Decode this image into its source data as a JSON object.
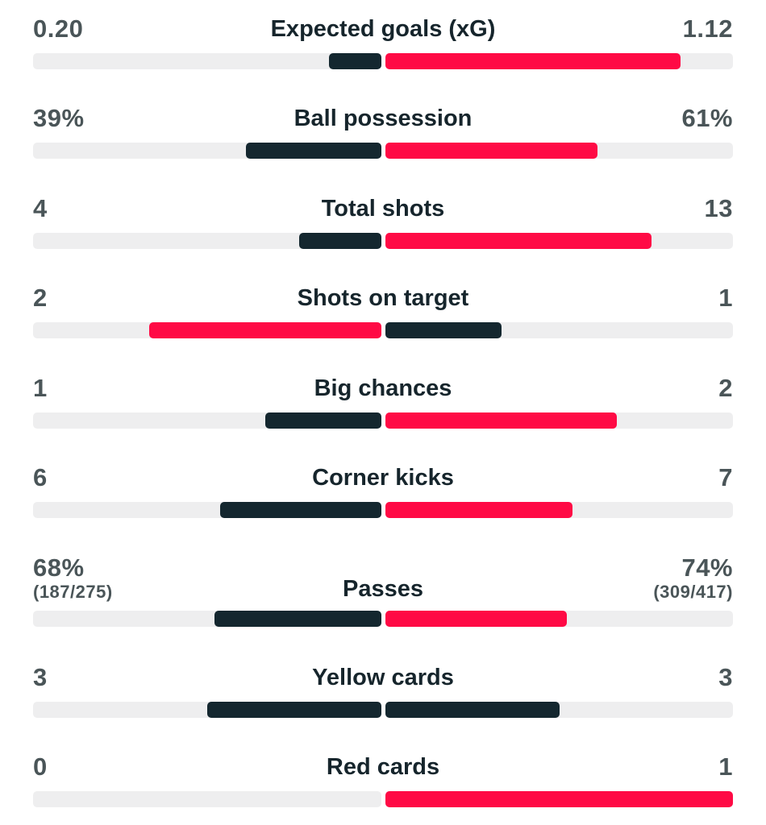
{
  "colors": {
    "dark": "#14272f",
    "red": "#ff0a45",
    "track": "#eeeeef"
  },
  "stats": [
    {
      "label": "Expected goals (xG)",
      "home": "0.20",
      "away": "1.12",
      "home_fill": 0.15,
      "away_fill": 0.85,
      "home_color": "dark",
      "away_color": "red"
    },
    {
      "label": "Ball possession",
      "home": "39%",
      "away": "61%",
      "home_fill": 0.39,
      "away_fill": 0.61,
      "home_color": "dark",
      "away_color": "red"
    },
    {
      "label": "Total shots",
      "home": "4",
      "away": "13",
      "home_fill": 0.235,
      "away_fill": 0.765,
      "home_color": "dark",
      "away_color": "red"
    },
    {
      "label": "Shots on target",
      "home": "2",
      "away": "1",
      "home_fill": 0.667,
      "away_fill": 0.333,
      "home_color": "red",
      "away_color": "dark"
    },
    {
      "label": "Big chances",
      "home": "1",
      "away": "2",
      "home_fill": 0.333,
      "away_fill": 0.667,
      "home_color": "dark",
      "away_color": "red"
    },
    {
      "label": "Corner kicks",
      "home": "6",
      "away": "7",
      "home_fill": 0.462,
      "away_fill": 0.538,
      "home_color": "dark",
      "away_color": "red"
    },
    {
      "label": "Passes",
      "home": "68%",
      "away": "74%",
      "home_sub": "(187/275)",
      "away_sub": "(309/417)",
      "home_fill": 0.479,
      "away_fill": 0.521,
      "home_color": "dark",
      "away_color": "red"
    },
    {
      "label": "Yellow cards",
      "home": "3",
      "away": "3",
      "home_fill": 0.5,
      "away_fill": 0.5,
      "home_color": "dark",
      "away_color": "dark"
    },
    {
      "label": "Red cards",
      "home": "0",
      "away": "1",
      "home_fill": 0.0,
      "away_fill": 1.0,
      "home_color": "dark",
      "away_color": "red"
    }
  ]
}
